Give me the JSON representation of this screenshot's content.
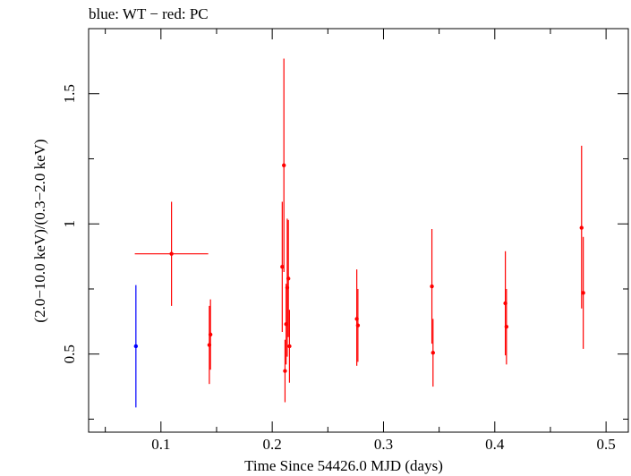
{
  "chart_data": {
    "type": "scatter",
    "title": "blue: WT − red: PC",
    "xlabel": "Time Since 54426.0 MJD (days)",
    "ylabel": "(2.0−10.0 keV)/(0.3−2.0 keV)",
    "xlim": [
      0.035,
      0.52
    ],
    "ylim": [
      0.2,
      1.75
    ],
    "xticks": [
      0.1,
      0.2,
      0.3,
      0.4,
      0.5
    ],
    "xtick_labels": [
      "0.1",
      "0.2",
      "0.3",
      "0.4",
      "0.5"
    ],
    "yticks": [
      0.5,
      1,
      1.5
    ],
    "ytick_labels": [
      "0.5",
      "1",
      "1.5"
    ],
    "grid": false,
    "legend": "none",
    "series": [
      {
        "color": "#0000ff",
        "points": [
          {
            "x": 0.0775,
            "y": 0.53,
            "ylo": 0.295,
            "yhi": 0.765,
            "xerr": 0
          }
        ]
      },
      {
        "color": "#ff0000",
        "points": [
          {
            "x": 0.1095,
            "y": 0.885,
            "ylo": 0.685,
            "yhi": 1.085,
            "xerr": 0.033
          },
          {
            "x": 0.1435,
            "y": 0.535,
            "ylo": 0.385,
            "yhi": 0.685,
            "xerr": 0
          },
          {
            "x": 0.1445,
            "y": 0.575,
            "ylo": 0.44,
            "yhi": 0.71,
            "xerr": 0
          },
          {
            "x": 0.209,
            "y": 0.835,
            "ylo": 0.585,
            "yhi": 1.085,
            "xerr": 0
          },
          {
            "x": 0.2105,
            "y": 1.225,
            "ylo": 0.815,
            "yhi": 1.635,
            "xerr": 0
          },
          {
            "x": 0.2115,
            "y": 0.435,
            "ylo": 0.315,
            "yhi": 0.555,
            "xerr": 0
          },
          {
            "x": 0.2125,
            "y": 0.615,
            "ylo": 0.46,
            "yhi": 0.77,
            "xerr": 0
          },
          {
            "x": 0.2135,
            "y": 0.755,
            "ylo": 0.49,
            "yhi": 1.02,
            "xerr": 0
          },
          {
            "x": 0.2145,
            "y": 0.79,
            "ylo": 0.565,
            "yhi": 1.015,
            "xerr": 0
          },
          {
            "x": 0.2155,
            "y": 0.53,
            "ylo": 0.39,
            "yhi": 0.67,
            "xerr": 0
          },
          {
            "x": 0.276,
            "y": 0.635,
            "ylo": 0.455,
            "yhi": 0.825,
            "xerr": 0
          },
          {
            "x": 0.277,
            "y": 0.61,
            "ylo": 0.47,
            "yhi": 0.75,
            "xerr": 0
          },
          {
            "x": 0.3435,
            "y": 0.76,
            "ylo": 0.54,
            "yhi": 0.98,
            "xerr": 0
          },
          {
            "x": 0.3445,
            "y": 0.505,
            "ylo": 0.375,
            "yhi": 0.635,
            "xerr": 0
          },
          {
            "x": 0.4095,
            "y": 0.695,
            "ylo": 0.495,
            "yhi": 0.895,
            "xerr": 0
          },
          {
            "x": 0.4105,
            "y": 0.605,
            "ylo": 0.46,
            "yhi": 0.75,
            "xerr": 0
          },
          {
            "x": 0.478,
            "y": 0.985,
            "ylo": 0.675,
            "yhi": 1.3,
            "xerr": 0
          },
          {
            "x": 0.4795,
            "y": 0.735,
            "ylo": 0.52,
            "yhi": 0.95,
            "xerr": 0
          }
        ]
      }
    ]
  }
}
